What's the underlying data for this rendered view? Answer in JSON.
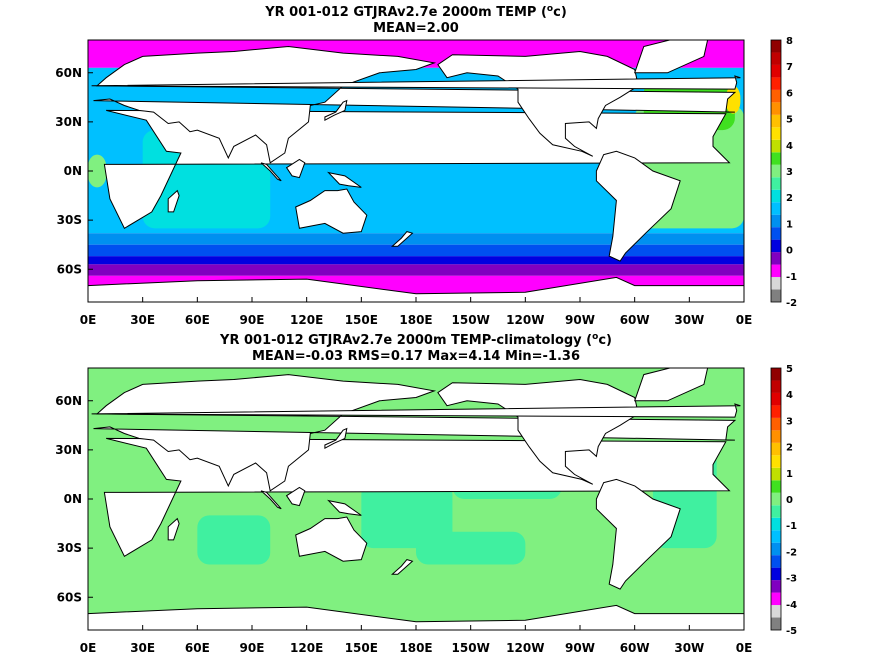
{
  "chart_data": [
    {
      "type": "heatmap",
      "title_parts": {
        "pre": "YR 001-012 GTJRAv2.7e 2000m TEMP (",
        "sup": "o",
        "post": "c)"
      },
      "subtitle": "MEAN=2.00",
      "xticks": [
        "0E",
        "30E",
        "60E",
        "90E",
        "120E",
        "150E",
        "180E",
        "150W",
        "120W",
        "90W",
        "60W",
        "30W",
        "0E"
      ],
      "yticks": [
        "60N",
        "30N",
        "0N",
        "30S",
        "60S"
      ],
      "colorbar_ticks": [
        "-2",
        "-1",
        "0",
        "1",
        "2",
        "3",
        "4",
        "5",
        "6",
        "7",
        "8"
      ],
      "colorbar_colors": [
        "#808080",
        "#d8d8d8",
        "#ff00ff",
        "#8000c0",
        "#0000e0",
        "#0050f0",
        "#0090f0",
        "#00c0ff",
        "#00e0e0",
        "#40f0a0",
        "#80f080",
        "#40e020",
        "#c0e000",
        "#ffe000",
        "#ffc000",
        "#ff9000",
        "#ff6000",
        "#ff2000",
        "#e00000",
        "#c00000",
        "#900000"
      ],
      "bands": [
        {
          "lat": [
            63,
            80
          ],
          "color": "#ff00ff"
        },
        {
          "lat": [
            40,
            63
          ],
          "color": "#00c0ff"
        },
        {
          "lat": [
            -38,
            40
          ],
          "color": "#00c0ff"
        },
        {
          "lat": [
            -45,
            -38
          ],
          "color": "#0090f0"
        },
        {
          "lat": [
            -52,
            -45
          ],
          "color": "#0050f0"
        },
        {
          "lat": [
            -57,
            -52
          ],
          "color": "#0000e0"
        },
        {
          "lat": [
            -64,
            -57
          ],
          "color": "#8000c0"
        },
        {
          "lat": [
            -80,
            -64
          ],
          "color": "#ff00ff"
        }
      ],
      "patches": [
        {
          "lon": [
            30,
            100
          ],
          "lat": [
            -35,
            25
          ],
          "color": "#00e0e0"
        },
        {
          "lon": [
            300,
            360
          ],
          "lat": [
            -35,
            40
          ],
          "color": "#80f080"
        },
        {
          "lon": [
            305,
            355
          ],
          "lat": [
            25,
            55
          ],
          "color": "#40e020"
        },
        {
          "lon": [
            350,
            358
          ],
          "lat": [
            35,
            52
          ],
          "color": "#ffe000"
        },
        {
          "lon": [
            0,
            10
          ],
          "lat": [
            -10,
            10
          ],
          "color": "#80f080"
        }
      ]
    },
    {
      "type": "heatmap",
      "title_parts": {
        "pre": "YR 001-012 GTJRAv2.7e 2000m TEMP-climatology (",
        "sup": "o",
        "post": "c)"
      },
      "subtitle": "MEAN=-0.03   RMS=0.17   Max=4.14   Min=-1.36",
      "xticks": [
        "0E",
        "30E",
        "60E",
        "90E",
        "120E",
        "150E",
        "180E",
        "150W",
        "120W",
        "90W",
        "60W",
        "30W",
        "0E"
      ],
      "yticks": [
        "60N",
        "30N",
        "0N",
        "30S",
        "60S"
      ],
      "colorbar_ticks": [
        "-5",
        "-4",
        "-3",
        "-2",
        "-1",
        "0",
        "1",
        "2",
        "3",
        "4",
        "5"
      ],
      "colorbar_colors": [
        "#808080",
        "#d8d8d8",
        "#ff00ff",
        "#8000c0",
        "#0000e0",
        "#0050f0",
        "#0090f0",
        "#00c0ff",
        "#00e0e0",
        "#40f0a0",
        "#80f080",
        "#40e020",
        "#c0e000",
        "#ffe000",
        "#ffc000",
        "#ff9000",
        "#ff6000",
        "#ff2000",
        "#e00000",
        "#c00000",
        "#900000"
      ],
      "bands": [
        {
          "lat": [
            -80,
            80
          ],
          "color": "#80f080"
        }
      ],
      "patches": [
        {
          "lon": [
            60,
            100
          ],
          "lat": [
            -40,
            -10
          ],
          "color": "#40f0a0"
        },
        {
          "lon": [
            200,
            260
          ],
          "lat": [
            0,
            30
          ],
          "color": "#40f0a0"
        },
        {
          "lon": [
            150,
            200
          ],
          "lat": [
            -30,
            10
          ],
          "color": "#40f0a0"
        },
        {
          "lon": [
            310,
            345
          ],
          "lat": [
            -30,
            30
          ],
          "color": "#40f0a0"
        },
        {
          "lon": [
            180,
            240
          ],
          "lat": [
            -40,
            -20
          ],
          "color": "#40f0a0"
        }
      ]
    }
  ]
}
